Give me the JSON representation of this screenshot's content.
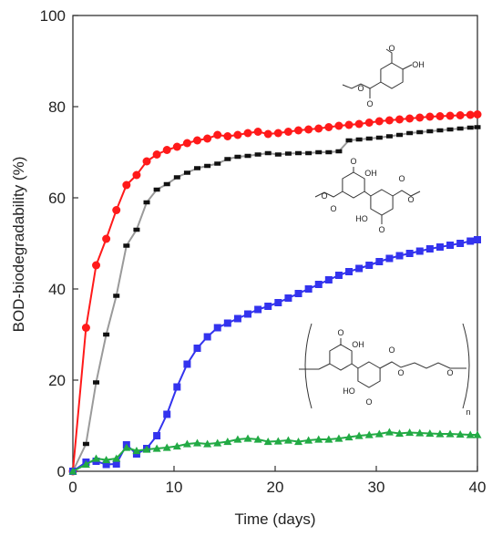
{
  "chart_data": {
    "type": "line",
    "xlabel": "Time (days)",
    "ylabel": "BOD-biodegradability (%)",
    "xlim": [
      0,
      40
    ],
    "ylim": [
      0,
      100
    ],
    "xticks": [
      0,
      10,
      20,
      30,
      40
    ],
    "yticks": [
      0,
      20,
      40,
      60,
      80,
      100
    ],
    "grid": false,
    "legend": "none",
    "series": [
      {
        "color": "#ff1a1a",
        "marker": "circle",
        "line": "#ff1a1a",
        "x": [
          0,
          1.3,
          2.3,
          3.3,
          4.3,
          5.3,
          6.3,
          7.3,
          8.3,
          9.3,
          10.3,
          11.3,
          12.3,
          13.3,
          14.3,
          15.3,
          16.3,
          17.3,
          18.3,
          19.3,
          20.3,
          21.3,
          22.3,
          23.3,
          24.3,
          25.3,
          26.3,
          27.3,
          28.3,
          29.3,
          30.3,
          31.3,
          32.3,
          33.3,
          34.3,
          35.3,
          36.3,
          37.3,
          38.3,
          39.3,
          40
        ],
        "y": [
          0,
          31.5,
          45.2,
          51,
          57.3,
          62.8,
          65,
          68,
          69.5,
          70.5,
          71.2,
          72,
          72.6,
          73,
          73.8,
          73.5,
          73.8,
          74.2,
          74.5,
          74,
          74.2,
          74.5,
          74.8,
          75,
          75.2,
          75.5,
          75.8,
          76,
          76.2,
          76.5,
          76.8,
          77,
          77.2,
          77.4,
          77.6,
          77.8,
          77.9,
          78,
          78.1,
          78.2,
          78.3
        ]
      },
      {
        "color": "#111111",
        "marker": "square",
        "line": "#9a9a9a",
        "x": [
          0,
          1.3,
          2.3,
          3.3,
          4.3,
          5.3,
          6.3,
          7.3,
          8.3,
          9.3,
          10.3,
          11.3,
          12.3,
          13.3,
          14.3,
          15.3,
          16.3,
          17.3,
          18.3,
          19.3,
          20.3,
          21.3,
          22.3,
          23.3,
          24.3,
          25.3,
          26.3,
          27.3,
          28.3,
          29.3,
          30.3,
          31.3,
          32.3,
          33.3,
          34.3,
          35.3,
          36.3,
          37.3,
          38.3,
          39.3,
          40
        ],
        "y": [
          0,
          6,
          19.5,
          30,
          38.5,
          49.5,
          53,
          59,
          61.8,
          63,
          64.5,
          65.5,
          66.5,
          67,
          67.5,
          68.5,
          69,
          69.2,
          69.5,
          69.8,
          69.5,
          69.7,
          69.8,
          69.8,
          70,
          70,
          70.2,
          72.6,
          72.8,
          73,
          73.2,
          73.5,
          73.8,
          74.2,
          74.4,
          74.6,
          74.8,
          75,
          75.2,
          75.4,
          75.5
        ]
      },
      {
        "color": "#3333ee",
        "marker": "square",
        "line": "#3333ee",
        "x": [
          0,
          1.3,
          2.3,
          3.3,
          4.3,
          5.3,
          6.3,
          7.3,
          8.3,
          9.3,
          10.3,
          11.3,
          12.3,
          13.3,
          14.3,
          15.3,
          16.3,
          17.3,
          18.3,
          19.3,
          20.3,
          21.3,
          22.3,
          23.3,
          24.3,
          25.3,
          26.3,
          27.3,
          28.3,
          29.3,
          30.3,
          31.3,
          32.3,
          33.3,
          34.3,
          35.3,
          36.3,
          37.3,
          38.3,
          39.3,
          40
        ],
        "y": [
          0,
          2,
          2.2,
          1.5,
          1.6,
          5.8,
          3.8,
          5,
          7.8,
          12.5,
          18.5,
          23.5,
          27,
          29.5,
          31.5,
          32.5,
          33.5,
          34.5,
          35.5,
          36.2,
          37,
          38,
          39,
          40,
          41,
          42,
          43,
          43.8,
          44.5,
          45.2,
          46,
          46.7,
          47.3,
          47.8,
          48.3,
          48.8,
          49.2,
          49.6,
          50,
          50.5,
          50.8
        ]
      },
      {
        "color": "#22aa44",
        "marker": "triangle",
        "line": "#22aa44",
        "x": [
          0,
          1.3,
          2.3,
          3.3,
          4.3,
          5.3,
          6.3,
          7.3,
          8.3,
          9.3,
          10.3,
          11.3,
          12.3,
          13.3,
          14.3,
          15.3,
          16.3,
          17.3,
          18.3,
          19.3,
          20.3,
          21.3,
          22.3,
          23.3,
          24.3,
          25.3,
          26.3,
          27.3,
          28.3,
          29.3,
          30.3,
          31.3,
          32.3,
          33.3,
          34.3,
          35.3,
          36.3,
          37.3,
          38.3,
          39.3,
          40
        ],
        "y": [
          0,
          1.5,
          2.8,
          2.5,
          2.8,
          5.2,
          4.5,
          4.8,
          5,
          5.2,
          5.5,
          6,
          6.2,
          6,
          6.2,
          6.5,
          7,
          7.2,
          7,
          6.5,
          6.6,
          6.8,
          6.5,
          6.8,
          7,
          7,
          7.2,
          7.5,
          7.8,
          8,
          8.2,
          8.6,
          8.3,
          8.5,
          8.4,
          8.3,
          8.2,
          8.2,
          8.1,
          8,
          8
        ]
      }
    ],
    "structures": {
      "mono_labels": [
        "O",
        "O",
        "OH",
        "O"
      ],
      "dimer_labels": [
        "O",
        "OH",
        "O",
        "O",
        "HO",
        "O",
        "O",
        "O"
      ],
      "polymer_labels": [
        "O",
        "OH",
        "O",
        "HO",
        "O",
        "O",
        "O",
        "n"
      ]
    }
  }
}
